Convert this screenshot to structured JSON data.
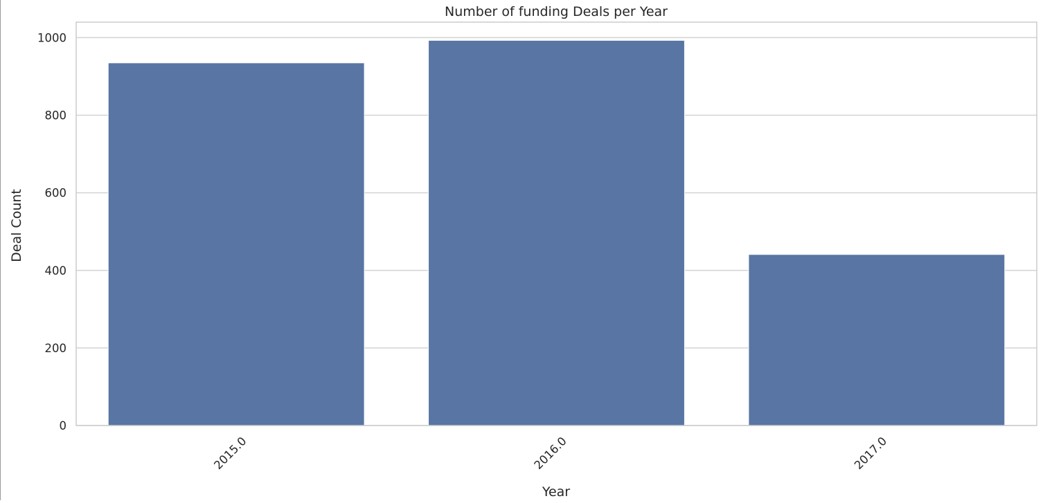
{
  "chart_data": {
    "type": "bar",
    "title": "Number of funding Deals per Year",
    "xlabel": "Year",
    "ylabel": "Deal Count",
    "categories": [
      "2015.0",
      "2016.0",
      "2017.0"
    ],
    "values": [
      935,
      993,
      441
    ],
    "ylim": [
      0,
      1040
    ],
    "yticks": [
      0,
      200,
      400,
      600,
      800,
      1000
    ],
    "grid": "horizontal",
    "bar_color": "#5875a4",
    "grid_color": "#d3d3d3",
    "spine_color": "#cccccc",
    "xtick_rotation": -45
  }
}
